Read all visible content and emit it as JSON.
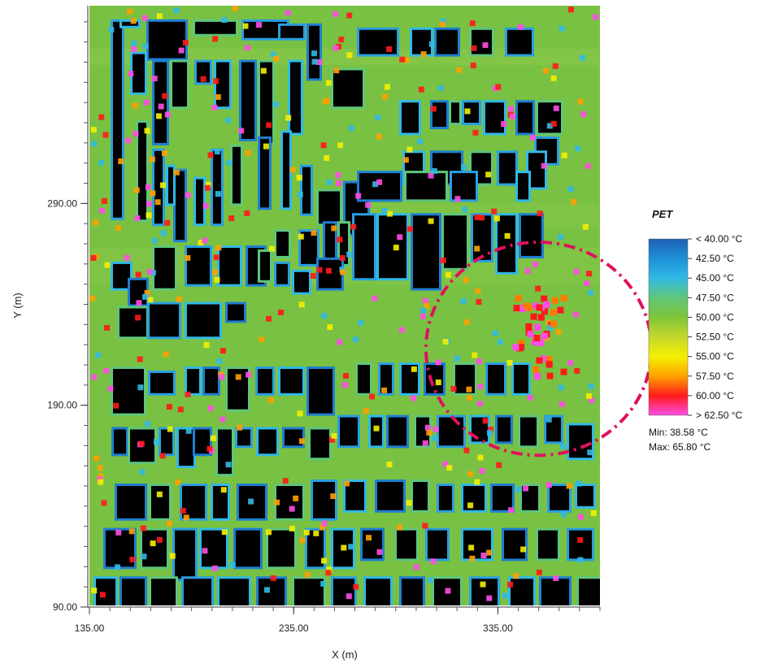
{
  "map": {
    "x_axis": {
      "title": "X (m)",
      "range": [
        135.0,
        385.0
      ],
      "ticks": [
        {
          "value": 135.0,
          "label": "135.00"
        },
        {
          "value": 235.0,
          "label": "235.00"
        },
        {
          "value": 335.0,
          "label": "335.00"
        }
      ]
    },
    "y_axis": {
      "title": "Y (m)",
      "range": [
        90.0,
        388.0
      ],
      "ticks": [
        {
          "value": 290.0,
          "label": "290.00"
        },
        {
          "value": 190.0,
          "label": "190.00"
        },
        {
          "value": 90.0,
          "label": "90.00"
        }
      ]
    },
    "background_color": "#79c142",
    "building_color": "#000000",
    "buildings": [
      [
        139,
        380,
        150,
        283
      ],
      [
        150,
        380,
        170,
        378
      ],
      [
        183,
        380,
        228,
        362
      ],
      [
        240,
        380,
        290,
        374
      ],
      [
        300,
        380,
        353,
        372
      ],
      [
        163,
        364,
        178,
        345
      ],
      [
        190,
        360,
        205,
        320
      ],
      [
        212,
        360,
        230,
        338
      ],
      [
        242,
        360,
        258,
        350
      ],
      [
        266,
        360,
        282,
        338
      ],
      [
        297,
        360,
        313,
        322
      ],
      [
        320,
        360,
        335,
        320
      ],
      [
        345,
        378,
        373,
        372
      ],
      [
        357,
        360,
        370,
        325
      ],
      [
        380,
        378,
        393,
        352
      ],
      [
        410,
        356,
        446,
        338
      ],
      [
        442,
        376,
        488,
        364
      ],
      [
        507,
        376,
        530,
        364
      ],
      [
        537,
        376,
        563,
        364
      ],
      [
        580,
        376,
        605,
        364
      ],
      [
        624,
        376,
        654,
        364
      ],
      [
        494,
        340,
        515,
        325
      ],
      [
        532,
        340,
        549,
        328
      ],
      [
        555,
        340,
        565,
        330
      ],
      [
        571,
        340,
        589,
        330
      ],
      [
        597,
        340,
        620,
        325
      ],
      [
        637,
        340,
        655,
        325
      ],
      [
        662,
        340,
        690,
        325
      ],
      [
        660,
        322,
        685,
        310
      ],
      [
        498,
        315,
        520,
        300
      ],
      [
        532,
        315,
        567,
        300
      ],
      [
        580,
        315,
        604,
        300
      ],
      [
        614,
        315,
        634,
        300
      ],
      [
        650,
        315,
        670,
        298
      ],
      [
        425,
        300,
        452,
        275
      ],
      [
        392,
        296,
        418,
        280
      ],
      [
        372,
        308,
        382,
        285
      ],
      [
        348,
        325,
        356,
        288
      ],
      [
        320,
        322,
        331,
        288
      ],
      [
        286,
        318,
        296,
        290
      ],
      [
        262,
        316,
        272,
        280
      ],
      [
        241,
        302,
        250,
        280
      ],
      [
        216,
        306,
        227,
        272
      ],
      [
        170,
        330,
        180,
        282
      ],
      [
        190,
        316,
        200,
        280
      ],
      [
        207,
        308,
        213,
        290
      ],
      [
        442,
        305,
        492,
        292
      ],
      [
        500,
        305,
        548,
        292
      ],
      [
        556,
        305,
        585,
        292
      ],
      [
        637,
        305,
        650,
        292
      ],
      [
        400,
        280,
        412,
        252
      ],
      [
        418,
        280,
        428,
        260
      ],
      [
        436,
        284,
        460,
        253
      ],
      [
        466,
        284,
        500,
        253
      ],
      [
        508,
        284,
        540,
        248
      ],
      [
        546,
        284,
        574,
        258
      ],
      [
        582,
        284,
        604,
        262
      ],
      [
        612,
        284,
        634,
        256
      ],
      [
        641,
        284,
        666,
        264
      ],
      [
        190,
        268,
        215,
        248
      ],
      [
        230,
        268,
        258,
        250
      ],
      [
        270,
        268,
        295,
        250
      ],
      [
        305,
        268,
        325,
        250
      ],
      [
        340,
        276,
        355,
        264
      ],
      [
        370,
        276,
        390,
        260
      ],
      [
        139,
        260,
        160,
        248
      ],
      [
        160,
        252,
        180,
        240
      ],
      [
        147,
        238,
        180,
        224
      ],
      [
        184,
        240,
        220,
        224
      ],
      [
        230,
        240,
        270,
        224
      ],
      [
        280,
        240,
        300,
        232
      ],
      [
        320,
        266,
        332,
        252
      ],
      [
        340,
        260,
        354,
        250
      ],
      [
        362,
        256,
        380,
        246
      ],
      [
        392,
        262,
        420,
        248
      ],
      [
        139,
        208,
        177,
        186
      ],
      [
        185,
        206,
        213,
        196
      ],
      [
        230,
        208,
        245,
        196
      ],
      [
        252,
        208,
        268,
        196
      ],
      [
        280,
        208,
        305,
        188
      ],
      [
        317,
        208,
        335,
        196
      ],
      [
        345,
        208,
        372,
        196
      ],
      [
        380,
        208,
        409,
        186
      ],
      [
        440,
        210,
        455,
        196
      ],
      [
        468,
        210,
        482,
        196
      ],
      [
        494,
        210,
        514,
        196
      ],
      [
        524,
        210,
        545,
        196
      ],
      [
        560,
        210,
        584,
        196
      ],
      [
        600,
        210,
        620,
        196
      ],
      [
        632,
        210,
        650,
        196
      ],
      [
        140,
        178,
        155,
        166
      ],
      [
        160,
        178,
        190,
        162
      ],
      [
        198,
        178,
        212,
        166
      ],
      [
        220,
        178,
        238,
        160
      ],
      [
        240,
        178,
        258,
        166
      ],
      [
        268,
        178,
        285,
        156
      ],
      [
        292,
        178,
        308,
        170
      ],
      [
        318,
        178,
        340,
        166
      ],
      [
        350,
        178,
        372,
        170
      ],
      [
        382,
        178,
        405,
        164
      ],
      [
        418,
        184,
        440,
        170
      ],
      [
        456,
        184,
        470,
        170
      ],
      [
        478,
        184,
        500,
        170
      ],
      [
        512,
        184,
        528,
        170
      ],
      [
        540,
        184,
        570,
        170
      ],
      [
        580,
        184,
        600,
        172
      ],
      [
        612,
        184,
        628,
        172
      ],
      [
        640,
        184,
        660,
        170
      ],
      [
        672,
        184,
        690,
        172
      ],
      [
        700,
        180,
        728,
        164
      ],
      [
        144,
        150,
        178,
        134
      ],
      [
        186,
        150,
        208,
        134
      ],
      [
        224,
        150,
        252,
        134
      ],
      [
        262,
        150,
        280,
        134
      ],
      [
        294,
        150,
        326,
        134
      ],
      [
        340,
        150,
        372,
        134
      ],
      [
        385,
        152,
        412,
        134
      ],
      [
        425,
        152,
        448,
        138
      ],
      [
        464,
        152,
        496,
        138
      ],
      [
        508,
        152,
        526,
        138
      ],
      [
        540,
        150,
        556,
        138
      ],
      [
        570,
        150,
        596,
        138
      ],
      [
        606,
        150,
        630,
        138
      ],
      [
        642,
        150,
        662,
        138
      ],
      [
        676,
        150,
        700,
        138
      ],
      [
        710,
        150,
        730,
        140
      ],
      [
        130,
        128,
        165,
        110
      ],
      [
        175,
        128,
        205,
        110
      ],
      [
        215,
        128,
        240,
        104
      ],
      [
        248,
        128,
        278,
        110
      ],
      [
        290,
        128,
        320,
        110
      ],
      [
        330,
        128,
        362,
        110
      ],
      [
        378,
        128,
        398,
        110
      ],
      [
        410,
        128,
        434,
        110
      ],
      [
        446,
        128,
        470,
        114
      ],
      [
        488,
        128,
        512,
        114
      ],
      [
        526,
        128,
        550,
        114
      ],
      [
        570,
        128,
        604,
        114
      ],
      [
        620,
        128,
        646,
        114
      ],
      [
        662,
        128,
        686,
        114
      ],
      [
        700,
        128,
        728,
        114
      ],
      [
        118,
        104,
        142,
        90
      ],
      [
        150,
        104,
        178,
        90
      ],
      [
        186,
        104,
        216,
        90
      ],
      [
        226,
        104,
        260,
        90
      ],
      [
        270,
        104,
        306,
        90
      ],
      [
        318,
        104,
        350,
        90
      ],
      [
        362,
        104,
        398,
        90
      ],
      [
        410,
        104,
        436,
        90
      ],
      [
        450,
        104,
        480,
        90
      ],
      [
        494,
        104,
        520,
        90
      ],
      [
        534,
        104,
        566,
        90
      ],
      [
        580,
        104,
        612,
        90
      ],
      [
        628,
        104,
        656,
        90
      ],
      [
        666,
        104,
        700,
        90
      ],
      [
        712,
        104,
        738,
        90
      ]
    ],
    "hotspot_annotation": {
      "cx": 355,
      "cy": 218,
      "rx": 12,
      "ry": 22,
      "color": "#e0115f"
    }
  },
  "legend": {
    "title": "PET",
    "labels": [
      "< 40.00 °C",
      "42.50  °C",
      "45.00  °C",
      "47.50  °C",
      "50.00  °C",
      "52.50  °C",
      "55.00  °C",
      "57.50  °C",
      "60.00  °C",
      "> 62.50 °C"
    ],
    "colors": [
      "#1f5fb4",
      "#1e8fd6",
      "#31b9e6",
      "#5fc67c",
      "#7cc43a",
      "#c6d92a",
      "#f4f000",
      "#ffa000",
      "#ff1a1a",
      "#ff4ce6"
    ],
    "min_label": "Min: 38.58 °C",
    "max_label": "Max: 65.80 °C"
  }
}
